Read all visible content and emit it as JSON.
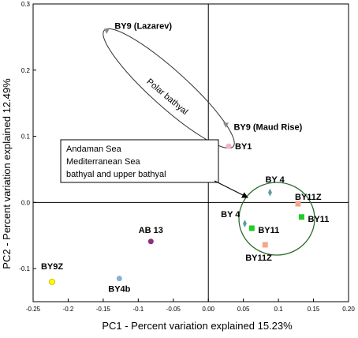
{
  "chart_data": {
    "type": "scatter",
    "xlabel": "PC1 - Percent variation explained 15.23%",
    "ylabel": "PC2 - Percent variation explained 12.49%",
    "xlim": [
      -0.25,
      0.2
    ],
    "ylim": [
      -0.15,
      0.3
    ],
    "xticks": [
      "-0.25",
      "-0.2",
      "-0.15",
      "-0.1",
      "-0.05",
      "0.00",
      "0.05",
      "0.1",
      "0.15",
      "0.20"
    ],
    "xtick_values": [
      -0.25,
      -0.2,
      -0.15,
      -0.1,
      -0.05,
      0.0,
      0.05,
      0.1,
      0.15,
      0.2
    ],
    "yticks": [
      "0.3",
      "0.2",
      "0.1",
      "0.0",
      "-0.1"
    ],
    "ytick_values": [
      0.3,
      0.2,
      0.1,
      0.0,
      -0.1
    ],
    "grid": false,
    "points": [
      {
        "label": "BY9 (Lazarev)",
        "x": -0.145,
        "y": 0.259,
        "shape": "triangle-down",
        "color": "#8a8a8a"
      },
      {
        "label": "BY9 (Maud Rise)",
        "x": 0.025,
        "y": 0.117,
        "shape": "triangle-down",
        "color": "#8a8a8a"
      },
      {
        "label": "BY1",
        "x": 0.029,
        "y": 0.085,
        "shape": "circle",
        "color": "#f2b3c6"
      },
      {
        "label": "BY 4",
        "x": 0.088,
        "y": 0.015,
        "shape": "diamond",
        "color": "#5f9ea0"
      },
      {
        "label": "BY11Z",
        "x": 0.128,
        "y": -0.002,
        "shape": "square",
        "color": "#f4a78a"
      },
      {
        "label": "BY11",
        "x": 0.133,
        "y": -0.022,
        "shape": "square",
        "color": "#22cc22"
      },
      {
        "label": "BY 4",
        "x": 0.052,
        "y": -0.032,
        "shape": "diamond",
        "color": "#5f9ea0"
      },
      {
        "label": "BY11",
        "x": 0.062,
        "y": -0.039,
        "shape": "square",
        "color": "#22cc22"
      },
      {
        "label": "BY11Z",
        "x": 0.081,
        "y": -0.064,
        "shape": "square",
        "color": "#f4a78a"
      },
      {
        "label": "AB 13",
        "x": -0.082,
        "y": -0.059,
        "shape": "circle",
        "color": "#8b2f7a"
      },
      {
        "label": "BY9Z",
        "x": -0.223,
        "y": -0.12,
        "shape": "circle",
        "color": "#ffff00"
      },
      {
        "label": "BY4b",
        "x": -0.127,
        "y": -0.115,
        "shape": "circle",
        "color": "#87b0d3"
      }
    ],
    "annotations": {
      "polar": "Polar bathyal",
      "box_lines": [
        "Andaman Sea",
        "Mediterranean Sea",
        "bathyal and upper bathyal"
      ]
    }
  }
}
